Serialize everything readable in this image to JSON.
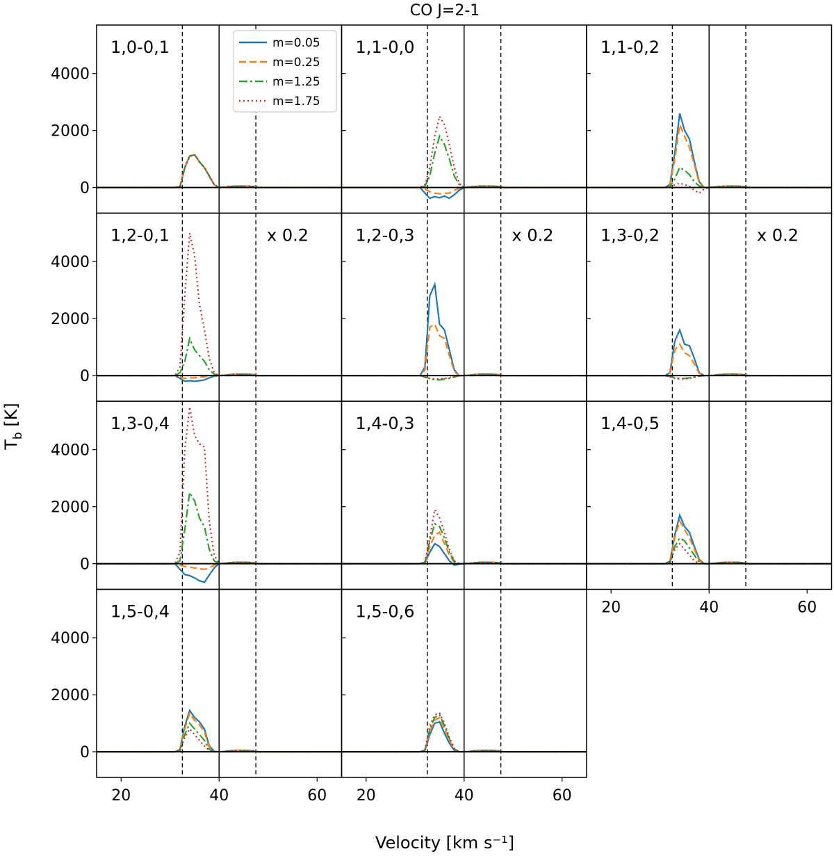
{
  "title": "CO J=2-1",
  "chart_data": {
    "type": "line",
    "title": "CO J=2-1",
    "xlabel": "Velocity [km s⁻¹]",
    "ylabel_main": "T",
    "ylabel_sub": "b",
    "ylabel_unit": " [K]",
    "xlim": [
      15,
      65
    ],
    "ylim": [
      -900,
      5700
    ],
    "xticks": [
      20,
      40,
      60
    ],
    "yticks": [
      0,
      2000,
      4000
    ],
    "grid": false,
    "legend_location": "top-right of first panel",
    "vlines_dashed": [
      32.5,
      47.5
    ],
    "vline_solid": 40,
    "series_styles": [
      {
        "name": "m=0.05",
        "color": "#1f77b4",
        "dash": ""
      },
      {
        "name": "m=0.25",
        "color": "#ff7f0e",
        "dash": "10,5"
      },
      {
        "name": "m=1.25",
        "color": "#2ca02c",
        "dash": "12,4,3,4"
      },
      {
        "name": "m=1.75",
        "color": "#d62728",
        "dash": "2,4"
      }
    ],
    "velocity": [
      31,
      32,
      33,
      34,
      35,
      36,
      37,
      38,
      39,
      40
    ],
    "panels": [
      {
        "label": "1,0-0,1",
        "scale": "",
        "series": [
          [
            0,
            20,
            700,
            1100,
            1150,
            900,
            700,
            400,
            100,
            0
          ],
          [
            0,
            20,
            700,
            1100,
            1150,
            900,
            700,
            400,
            100,
            0
          ],
          [
            0,
            20,
            700,
            1100,
            1150,
            900,
            700,
            400,
            100,
            0
          ],
          [
            0,
            20,
            700,
            1100,
            1150,
            900,
            700,
            400,
            100,
            0
          ]
        ]
      },
      {
        "label": "1,1-0,0",
        "scale": "",
        "series": [
          [
            0,
            -200,
            -380,
            -320,
            -360,
            -300,
            -380,
            -250,
            -100,
            0
          ],
          [
            0,
            -50,
            -150,
            -200,
            -220,
            -200,
            -200,
            -100,
            -30,
            0
          ],
          [
            0,
            50,
            400,
            1200,
            1800,
            1500,
            1000,
            400,
            100,
            0
          ],
          [
            0,
            100,
            700,
            1800,
            2500,
            2200,
            1500,
            700,
            150,
            0
          ]
        ]
      },
      {
        "label": "1,1-0,2",
        "scale": "",
        "series": [
          [
            0,
            100,
            1200,
            2600,
            2000,
            1700,
            900,
            200,
            0,
            0
          ],
          [
            0,
            80,
            1000,
            2200,
            1800,
            1400,
            800,
            150,
            0,
            0
          ],
          [
            0,
            20,
            300,
            700,
            600,
            450,
            200,
            50,
            0,
            0
          ],
          [
            0,
            0,
            100,
            150,
            100,
            50,
            -100,
            -200,
            -50,
            0
          ]
        ]
      },
      {
        "label": "1,2-0,1",
        "scale": "x 0.2",
        "series": [
          [
            0,
            -100,
            -200,
            -180,
            -200,
            -180,
            -150,
            -80,
            -20,
            0
          ],
          [
            0,
            -50,
            -100,
            -80,
            -80,
            -60,
            -40,
            -20,
            0,
            0
          ],
          [
            0,
            100,
            500,
            1300,
            900,
            700,
            500,
            200,
            50,
            0
          ],
          [
            0,
            300,
            2800,
            5000,
            4200,
            2500,
            1600,
            600,
            100,
            0
          ]
        ]
      },
      {
        "label": "1,2-0,3",
        "scale": "x 0.2",
        "series": [
          [
            0,
            300,
            2800,
            3200,
            1800,
            1600,
            900,
            200,
            0,
            0
          ],
          [
            0,
            200,
            1700,
            1800,
            1400,
            1300,
            700,
            150,
            0,
            0
          ],
          [
            0,
            -50,
            -100,
            -150,
            -150,
            -120,
            -100,
            -50,
            0,
            0
          ],
          [
            0,
            -50,
            -100,
            -120,
            -120,
            -100,
            -80,
            -40,
            0,
            0
          ]
        ]
      },
      {
        "label": "1,3-0,2",
        "scale": "x 0.2",
        "series": [
          [
            0,
            100,
            1200,
            1600,
            1100,
            1050,
            600,
            100,
            0,
            0
          ],
          [
            0,
            80,
            900,
            1100,
            800,
            700,
            400,
            80,
            0,
            0
          ],
          [
            0,
            -30,
            -80,
            -100,
            -100,
            -80,
            -50,
            -20,
            0,
            0
          ],
          [
            0,
            -40,
            -100,
            -120,
            -120,
            -100,
            -60,
            -20,
            0,
            0
          ]
        ]
      },
      {
        "label": "1,3-0,4",
        "scale": "",
        "series": [
          [
            0,
            -200,
            -380,
            -420,
            -500,
            -600,
            -650,
            -400,
            -150,
            0
          ],
          [
            0,
            -50,
            -100,
            -120,
            -150,
            -180,
            -200,
            -150,
            -50,
            0
          ],
          [
            0,
            100,
            1200,
            2500,
            2200,
            1600,
            1300,
            500,
            100,
            0
          ],
          [
            0,
            400,
            4000,
            5500,
            4500,
            4200,
            4100,
            1500,
            300,
            0
          ]
        ]
      },
      {
        "label": "1,4-0,3",
        "scale": "",
        "series": [
          [
            0,
            30,
            400,
            700,
            600,
            350,
            100,
            -50,
            -20,
            0
          ],
          [
            0,
            40,
            600,
            1000,
            1100,
            700,
            300,
            50,
            0,
            0
          ],
          [
            0,
            50,
            800,
            1400,
            1300,
            900,
            400,
            80,
            0,
            0
          ],
          [
            0,
            60,
            900,
            1900,
            1600,
            1100,
            500,
            100,
            0,
            0
          ]
        ]
      },
      {
        "label": "1,4-0,5",
        "scale": "",
        "series": [
          [
            0,
            80,
            1000,
            1700,
            1300,
            1100,
            600,
            150,
            0,
            0
          ],
          [
            0,
            70,
            900,
            1500,
            1200,
            900,
            500,
            100,
            0,
            0
          ],
          [
            0,
            50,
            600,
            900,
            800,
            550,
            300,
            50,
            0,
            0
          ],
          [
            0,
            40,
            500,
            700,
            500,
            300,
            100,
            0,
            0,
            0
          ]
        ]
      },
      {
        "label": "1,5-0,4",
        "scale": "",
        "series": [
          [
            0,
            80,
            900,
            1450,
            1200,
            1050,
            800,
            200,
            20,
            0
          ],
          [
            0,
            70,
            800,
            1350,
            1100,
            950,
            700,
            150,
            10,
            0
          ],
          [
            0,
            50,
            600,
            1000,
            800,
            600,
            400,
            80,
            0,
            0
          ],
          [
            0,
            40,
            500,
            800,
            600,
            400,
            200,
            50,
            0,
            0
          ]
        ]
      },
      {
        "label": "1,5-0,6",
        "scale": "",
        "series": [
          [
            0,
            40,
            600,
            1000,
            1050,
            650,
            300,
            50,
            0,
            0
          ],
          [
            0,
            50,
            700,
            1100,
            1200,
            800,
            400,
            80,
            0,
            0
          ],
          [
            0,
            60,
            800,
            1200,
            1300,
            900,
            450,
            100,
            0,
            0
          ],
          [
            0,
            70,
            900,
            1300,
            1350,
            1000,
            500,
            120,
            0,
            0
          ]
        ]
      }
    ],
    "bump": {
      "velocity": [
        40,
        41,
        42,
        43,
        44,
        45,
        46,
        47,
        48
      ],
      "tb": [
        0,
        10,
        30,
        45,
        50,
        50,
        45,
        30,
        0
      ]
    }
  }
}
